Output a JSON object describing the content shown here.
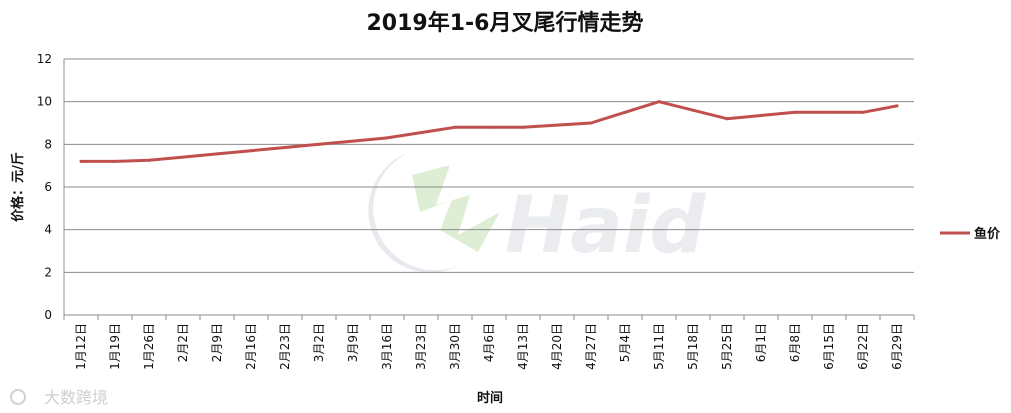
{
  "chart_data": {
    "type": "line",
    "title": "2019年1-6月叉尾行情走势",
    "xlabel": "时间",
    "ylabel": "价格：元/斤",
    "ylim": [
      0,
      12
    ],
    "yticks": [
      0,
      2,
      4,
      6,
      8,
      10,
      12
    ],
    "grid": true,
    "legend_position": "right",
    "categories": [
      "1月12日",
      "1月19日",
      "1月26日",
      "2月2日",
      "2月9日",
      "2月16日",
      "2月23日",
      "3月2日",
      "3月9日",
      "3月16日",
      "3月23日",
      "3月30日",
      "4月6日",
      "4月13日",
      "4月20日",
      "4月27日",
      "5月4日",
      "5月11日",
      "5月18日",
      "5月25日",
      "6月1日",
      "6月8日",
      "6月15日",
      "6月22日",
      "6月29日"
    ],
    "series": [
      {
        "name": "鱼价",
        "color": "#c0504d",
        "values": [
          7.2,
          7.2,
          7.25,
          7.4,
          7.55,
          7.7,
          7.85,
          8.0,
          8.15,
          8.3,
          8.55,
          8.8,
          8.8,
          8.8,
          8.9,
          9.0,
          9.5,
          10.0,
          9.6,
          9.2,
          9.35,
          9.5,
          9.5,
          9.5,
          9.8
        ]
      }
    ]
  },
  "watermark": {
    "logo_text": "Haid",
    "source_text": "大数跨境"
  }
}
